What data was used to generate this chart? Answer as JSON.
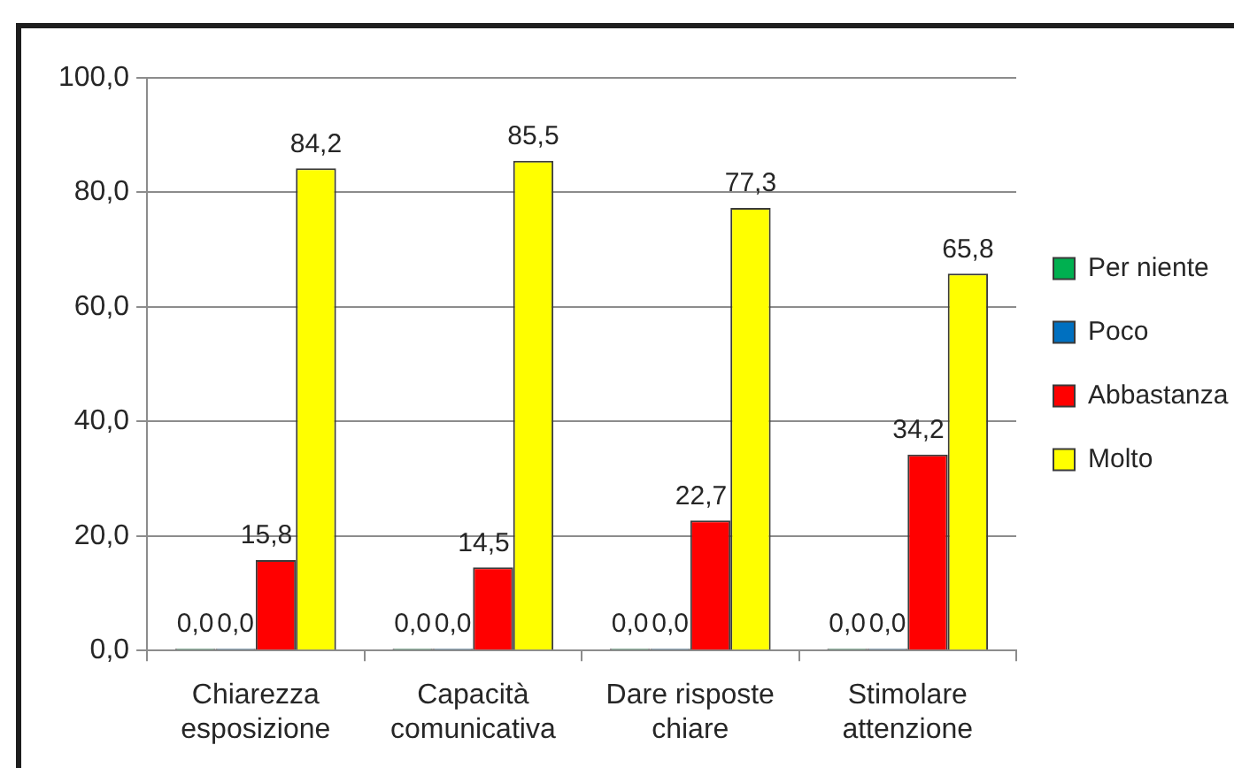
{
  "chart_data": {
    "type": "bar",
    "categories": [
      "Chiarezza esposizione",
      "Capacità comunicativa",
      "Dare risposte chiare",
      "Stimolare attenzione"
    ],
    "series": [
      {
        "name": "Per niente",
        "color": "#00b050",
        "values": [
          0,
          0,
          0,
          0
        ],
        "value_labels": [
          "0,0",
          "0,0",
          "0,0",
          "0,0"
        ]
      },
      {
        "name": "Poco",
        "color": "#0070c0",
        "values": [
          0,
          0,
          0,
          0
        ],
        "value_labels": [
          "0,0",
          "0,0",
          "0,0",
          "0,0"
        ]
      },
      {
        "name": "Abbastanza",
        "color": "#ff0000",
        "values": [
          15.8,
          14.5,
          22.7,
          34.2
        ],
        "value_labels": [
          "15,8",
          "14,5",
          "22,7",
          "34,2"
        ]
      },
      {
        "name": "Molto",
        "color": "#ffff00",
        "values": [
          84.2,
          85.5,
          77.3,
          65.8
        ],
        "value_labels": [
          "84,2",
          "85,5",
          "77,3",
          "65,8"
        ]
      }
    ],
    "ylim": [
      0,
      100
    ],
    "yticks": [
      {
        "value": 0,
        "label": "0,0"
      },
      {
        "value": 20,
        "label": "20,0"
      },
      {
        "value": 40,
        "label": "40,0"
      },
      {
        "value": 60,
        "label": "60,0"
      },
      {
        "value": 80,
        "label": "80,0"
      },
      {
        "value": 100,
        "label": "100,0"
      }
    ],
    "grid": "y",
    "legend": "right"
  }
}
